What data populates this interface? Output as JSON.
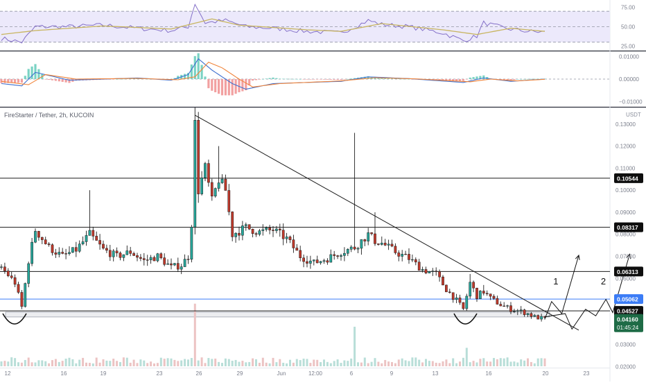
{
  "chart": {
    "title": "FireStarter / Tether, 2h, KUCOIN",
    "currency": "USDT",
    "countdown": "01:45:24"
  },
  "colors": {
    "up": "#26a69a",
    "down": "#c0392b",
    "rsi": "#8470c8",
    "rsi_ma": "#c8b560",
    "macd": "#3d6fcf",
    "signal": "#f0843a",
    "current_price_bg": "#1e6b46",
    "blue_level": "#3b7cf6"
  },
  "chart_data": [
    {
      "type": "candlestick",
      "name": "price",
      "title": "FireStarter / Tether, 2h, KUCOIN",
      "ylabel": "USDT",
      "ylim": [
        0.0195,
        0.1375
      ],
      "x_ticks": [
        "12",
        "16",
        "19",
        "23",
        "26",
        "29",
        "Jun",
        "12:00",
        "6",
        "9",
        "13",
        "16",
        "20",
        "23"
      ],
      "y_ticks": [
        0.02,
        0.03,
        0.04,
        0.05,
        0.06,
        0.07,
        0.08,
        0.09,
        0.1,
        0.11,
        0.12,
        0.13
      ],
      "close_path": [
        [
          0,
          0.065
        ],
        [
          4,
          0.058
        ],
        [
          6,
          0.047
        ],
        [
          8,
          0.068
        ],
        [
          10,
          0.082
        ],
        [
          14,
          0.074
        ],
        [
          18,
          0.07
        ],
        [
          22,
          0.073
        ],
        [
          26,
          0.08
        ],
        [
          30,
          0.073
        ],
        [
          34,
          0.07
        ],
        [
          38,
          0.072
        ],
        [
          42,
          0.068
        ],
        [
          46,
          0.07
        ],
        [
          50,
          0.065
        ],
        [
          53,
          0.066
        ],
        [
          55,
          0.07
        ],
        [
          56,
          0.085
        ],
        [
          57,
          0.13
        ],
        [
          58,
          0.1
        ],
        [
          60,
          0.11
        ],
        [
          62,
          0.095
        ],
        [
          64,
          0.105
        ],
        [
          66,
          0.1
        ],
        [
          68,
          0.08
        ],
        [
          72,
          0.083
        ],
        [
          76,
          0.081
        ],
        [
          80,
          0.082
        ],
        [
          84,
          0.078
        ],
        [
          88,
          0.07
        ],
        [
          92,
          0.067
        ],
        [
          96,
          0.069
        ],
        [
          100,
          0.072
        ],
        [
          104,
          0.074
        ],
        [
          108,
          0.08
        ],
        [
          110,
          0.077
        ],
        [
          112,
          0.076
        ],
        [
          116,
          0.072
        ],
        [
          120,
          0.069
        ],
        [
          124,
          0.064
        ],
        [
          128,
          0.062
        ],
        [
          131,
          0.055
        ],
        [
          134,
          0.05
        ],
        [
          136,
          0.046
        ],
        [
          138,
          0.058
        ],
        [
          140,
          0.052
        ],
        [
          142,
          0.054
        ],
        [
          144,
          0.051
        ],
        [
          147,
          0.048
        ],
        [
          150,
          0.046
        ],
        [
          153,
          0.045
        ],
        [
          155,
          0.044
        ],
        [
          157,
          0.0425
        ],
        [
          160,
          0.0416
        ]
      ],
      "spikes": [
        [
          26,
          0.1
        ],
        [
          57,
          0.1375
        ],
        [
          64,
          0.12
        ],
        [
          104,
          0.126
        ],
        [
          110,
          0.09
        ],
        [
          138,
          0.062
        ],
        [
          142,
          0.057
        ]
      ],
      "horizontal_levels": [
        {
          "value": 0.10544,
          "label": "0.10544",
          "color": "#1a1a1a"
        },
        {
          "value": 0.08317,
          "label": "0.08317",
          "color": "#1a1a1a"
        },
        {
          "value": 0.06313,
          "label": "0.06313",
          "color": "#1a1a1a"
        },
        {
          "value": 0.05062,
          "label": "0.05062",
          "color": "#3b7cf6"
        },
        {
          "value": 0.04527,
          "label": "0.04527",
          "color": "#1a1a1a"
        }
      ],
      "current_price": 0.0416,
      "current_price_label": "0.04160",
      "support_zone": [
        0.0425,
        0.0447
      ],
      "trendline": [
        [
          57,
          0.134
        ],
        [
          170,
          0.0365
        ]
      ],
      "projection_1": [
        [
          160,
          0.0416
        ],
        [
          162,
          0.0495
        ],
        [
          165,
          0.044
        ],
        [
          170,
          0.0705
        ]
      ],
      "projection_2": [
        [
          160,
          0.0425
        ],
        [
          166,
          0.044
        ],
        [
          168,
          0.037
        ],
        [
          172,
          0.046
        ],
        [
          175,
          0.043
        ],
        [
          178,
          0.0505
        ],
        [
          180,
          0.0445
        ],
        [
          185,
          0.071
        ]
      ],
      "annotations": [
        {
          "text": "1",
          "x": 162.5,
          "y": 0.0572
        },
        {
          "text": "2",
          "x": 176.5,
          "y": 0.0572
        }
      ],
      "volume_spikes": [
        [
          57,
          0.95
        ],
        [
          104,
          0.6
        ],
        [
          137,
          0.28
        ]
      ]
    },
    {
      "type": "line",
      "name": "RSI",
      "ylim": [
        20,
        80
      ],
      "y_ticks": [
        25,
        50,
        75
      ],
      "band": [
        30,
        70
      ],
      "series": [
        {
          "values_path": [
            [
              0,
              35
            ],
            [
              6,
              30
            ],
            [
              10,
              50
            ],
            [
              20,
              50
            ],
            [
              30,
              52
            ],
            [
              40,
              48
            ],
            [
              50,
              45
            ],
            [
              55,
              50
            ],
            [
              57,
              80
            ],
            [
              60,
              55
            ],
            [
              66,
              58
            ],
            [
              72,
              50
            ],
            [
              80,
              48
            ],
            [
              90,
              44
            ],
            [
              100,
              42
            ],
            [
              108,
              58
            ],
            [
              112,
              53
            ],
            [
              120,
              50
            ],
            [
              130,
              42
            ],
            [
              136,
              32
            ],
            [
              140,
              38
            ],
            [
              142,
              55
            ],
            [
              148,
              48
            ],
            [
              155,
              44
            ],
            [
              160,
              43
            ]
          ]
        },
        {
          "values_path": [
            [
              0,
              40
            ],
            [
              10,
              45
            ],
            [
              30,
              51
            ],
            [
              50,
              47
            ],
            [
              62,
              60
            ],
            [
              70,
              52
            ],
            [
              90,
              46
            ],
            [
              100,
              44
            ],
            [
              112,
              54
            ],
            [
              130,
              46
            ],
            [
              140,
              40
            ],
            [
              150,
              48
            ],
            [
              160,
              44
            ]
          ]
        }
      ]
    },
    {
      "type": "line",
      "name": "MACD",
      "ylim": [
        -0.012,
        0.012
      ],
      "y_ticks": [
        "0.01000",
        "0.00000",
        "−0.01000"
      ],
      "series": [
        {
          "values_path": [
            [
              0,
              -0.002
            ],
            [
              6,
              -0.003
            ],
            [
              10,
              0.003
            ],
            [
              20,
              -0.0005
            ],
            [
              40,
              0.0005
            ],
            [
              50,
              -0.0005
            ],
            [
              55,
              0.002
            ],
            [
              58,
              0.009
            ],
            [
              62,
              0.004
            ],
            [
              68,
              -0.002
            ],
            [
              72,
              -0.0045
            ],
            [
              80,
              -0.002
            ],
            [
              100,
              -0.001
            ],
            [
              108,
              0.001
            ],
            [
              120,
              0.0002
            ],
            [
              136,
              -0.0015
            ],
            [
              142,
              0.0005
            ],
            [
              150,
              -0.001
            ],
            [
              160,
              0
            ]
          ]
        },
        {
          "values_path": [
            [
              0,
              -0.001
            ],
            [
              8,
              -0.0025
            ],
            [
              13,
              0.002
            ],
            [
              22,
              0
            ],
            [
              40,
              0.0003
            ],
            [
              52,
              -0.0003
            ],
            [
              57,
              0.001
            ],
            [
              61,
              0.0075
            ],
            [
              65,
              0.005
            ],
            [
              70,
              0
            ],
            [
              74,
              -0.0035
            ],
            [
              82,
              -0.002
            ],
            [
              100,
              -0.0008
            ],
            [
              110,
              0.0006
            ],
            [
              122,
              0.0001
            ],
            [
              138,
              -0.0012
            ],
            [
              144,
              0
            ],
            [
              152,
              -0.0008
            ],
            [
              160,
              -0.0001
            ]
          ]
        }
      ]
    }
  ]
}
